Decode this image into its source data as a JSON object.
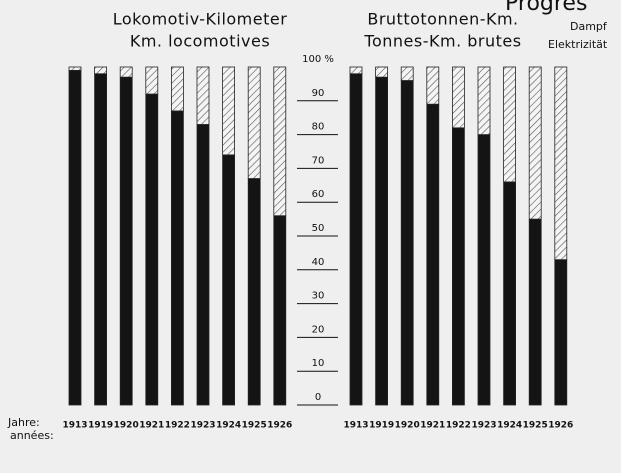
{
  "chart_data": {
    "type": "bar",
    "stacked": true,
    "title": "Progres",
    "legend": [
      {
        "name": "Dampf",
        "color": "#141414"
      },
      {
        "name": "Elektrizität",
        "color": "hatch"
      }
    ],
    "x_label": "Jahre:",
    "x_label_2": "années:",
    "ylim": [
      0,
      100
    ],
    "yticks": [
      0,
      10,
      20,
      30,
      40,
      50,
      60,
      70,
      80,
      90,
      {
        "value": 100,
        "label": "100 %"
      }
    ],
    "panels": [
      {
        "title": [
          "Lokomotiv-Kilometer",
          "Km. locomotives"
        ],
        "categories": [
          "1913",
          "1919",
          "1920",
          "1921",
          "1922",
          "1923",
          "1924",
          "1925",
          "1926"
        ],
        "series": [
          {
            "values": [
              99,
              98,
              97,
              92,
              87,
              83,
              74,
              67,
              56
            ]
          },
          {
            "values": [
              1,
              2,
              3,
              8,
              13,
              17,
              26,
              33,
              44
            ]
          }
        ]
      },
      {
        "title": [
          "Bruttotonnen-Km.",
          "Tonnes-Km. brutes"
        ],
        "categories": [
          "1913",
          "1919",
          "1920",
          "1921",
          "1922",
          "1923",
          "1924",
          "1925",
          "1926"
        ],
        "series": [
          {
            "values": [
              98,
              97,
              96,
              89,
              82,
              80,
              66,
              55,
              43
            ]
          },
          {
            "values": [
              2,
              3,
              4,
              11,
              18,
              20,
              34,
              45,
              57
            ]
          }
        ]
      }
    ]
  }
}
